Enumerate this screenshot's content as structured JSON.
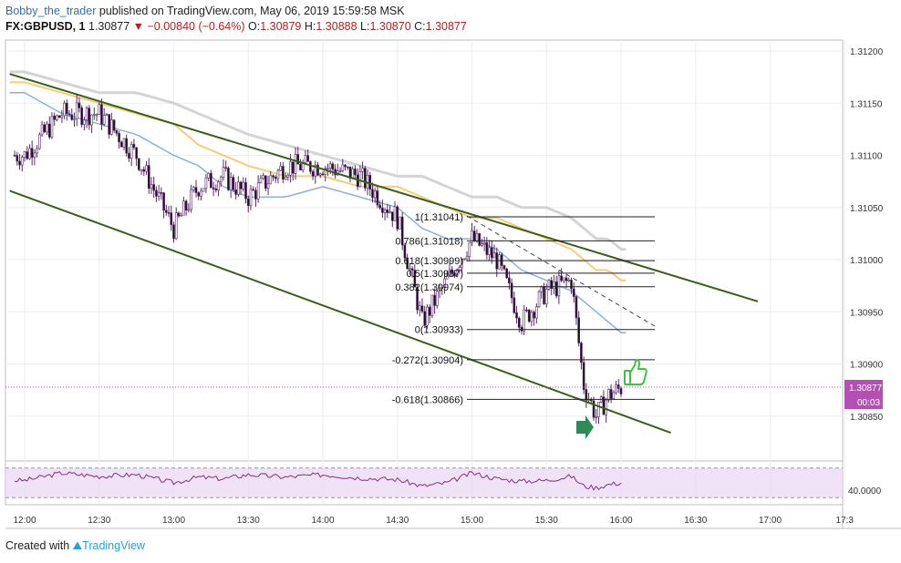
{
  "header": {
    "author": "Bobby_the_trader",
    "published": " published on TradingView.com, May 06, 2019 15:59:58 MSK",
    "symbol": "FX:GBPUSD, 1",
    "last": " 1.30877 ",
    "change": " −0.00840 (−0.64%)",
    "o_label": " O:",
    "o_value": "1.30879",
    "h_label": " H:",
    "h_value": "1.30888",
    "l_label": " L:",
    "l_value": "1.30870",
    "c_label": " C:",
    "c_value": "1.30877"
  },
  "footer": {
    "created_with": "Created with ",
    "brand": "TradingView"
  },
  "price_axis": {
    "ticks": [
      "1.31200",
      "1.31150",
      "1.31100",
      "1.31050",
      "1.31000",
      "1.30950",
      "1.30900",
      "1.30850"
    ],
    "last_price_tag": "1.30877",
    "countdown_tag": "00:03"
  },
  "rsi_axis": {
    "tick": "40.0000"
  },
  "time_axis": {
    "ticks": [
      "12:00",
      "12:30",
      "13:00",
      "13:30",
      "14:00",
      "14:30",
      "15:00",
      "15:30",
      "16:00",
      "16:30",
      "17:00",
      "17:3"
    ]
  },
  "fib_levels": [
    {
      "label": "1(1.31041)",
      "price": 1.31041
    },
    {
      "label": "0.786(1.31018)",
      "price": 1.31018
    },
    {
      "label": "0.618(1.30999)",
      "price": 1.30999
    },
    {
      "label": "0.5(1.30987)",
      "price": 1.30987
    },
    {
      "label": "0.382(1.30974)",
      "price": 1.30974
    },
    {
      "label": "0(1.30933)",
      "price": 1.30933
    },
    {
      "label": "-0.272(1.30904)",
      "price": 1.30904
    },
    {
      "label": "-0.618(1.30866)",
      "price": 1.30866
    }
  ],
  "colors": {
    "up_candle": "#ffffff",
    "down_candle": "#111111",
    "wick": "#5b2a6e",
    "channel": "#3b5e1a",
    "ma_fast": "#7fa7dc",
    "ma_mid": "#f3c96b",
    "ma_slow": "#cfcfcf",
    "rsi_line": "#8a2a8a",
    "rsi_band": "#e9d7f5",
    "arrow_green": "#2e8b57",
    "thumb_green": "#3cc43c"
  },
  "icons": {
    "entry": "green-arrow-right-icon",
    "target": "thumbs-up-icon"
  },
  "chart_data": {
    "type": "candlestick",
    "title": "",
    "symbol": "FX:GBPUSD",
    "interval": "1",
    "ylim": [
      1.3082,
      1.3122
    ],
    "xlim": [
      "11:54",
      "17:34"
    ],
    "x": [
      "12:00",
      "12:15",
      "12:30",
      "12:45",
      "13:00",
      "13:10",
      "13:20",
      "13:30",
      "13:45",
      "14:00",
      "14:15",
      "14:30",
      "14:40",
      "14:50",
      "15:00",
      "15:10",
      "15:20",
      "15:30",
      "15:40",
      "15:45",
      "15:50",
      "15:55",
      "16:00"
    ],
    "series": [
      {
        "values": [
          1.311,
          1.3114,
          1.3114,
          1.311,
          1.3103,
          1.3107,
          1.3108,
          1.3106,
          1.3109,
          1.3109,
          1.3108,
          1.3104,
          1.3094,
          1.3098,
          1.3102,
          1.31,
          1.3094,
          1.3097,
          1.3098,
          1.3088,
          1.3085,
          1.3087,
          1.30877
        ]
      },
      {
        "name": "",
        "values": [
          1.3116,
          1.3114,
          1.3113,
          1.3112,
          1.311,
          1.3109,
          1.3107,
          1.3106,
          1.3106,
          1.3107,
          1.3106,
          1.3105,
          1.3103,
          1.3102,
          1.3102,
          1.3101,
          1.3099,
          1.3098,
          1.3097,
          1.3096,
          1.3095,
          1.3094,
          1.3093
        ]
      },
      {
        "name": "",
        "values": [
          1.3117,
          1.3116,
          1.3115,
          1.3114,
          1.3113,
          1.3111,
          1.311,
          1.3109,
          1.3108,
          1.3108,
          1.3107,
          1.3107,
          1.3106,
          1.3105,
          1.3104,
          1.3104,
          1.3103,
          1.3102,
          1.3101,
          1.31,
          1.3099,
          1.3099,
          1.3098
        ]
      },
      {
        "name": "",
        "values": [
          1.3118,
          1.3117,
          1.3116,
          1.3116,
          1.3115,
          1.3114,
          1.3113,
          1.3112,
          1.3111,
          1.311,
          1.3109,
          1.3108,
          1.3108,
          1.3107,
          1.3106,
          1.3106,
          1.3105,
          1.3105,
          1.3104,
          1.3103,
          1.3102,
          1.3102,
          1.3101
        ]
      }
    ],
    "channel_upper": [
      [
        "11:54",
        1.31178
      ],
      [
        "16:55",
        1.3096
      ]
    ],
    "channel_lower": [
      [
        "11:54",
        1.31066
      ],
      [
        "16:20",
        1.30834
      ]
    ],
    "rsi": {
      "level": 40.0,
      "values": [
        43,
        52,
        48,
        50,
        40,
        47,
        45,
        50,
        47,
        50,
        46,
        44,
        36,
        40,
        52,
        45,
        42,
        43,
        48,
        36,
        34,
        38,
        40
      ]
    },
    "grid": true
  }
}
